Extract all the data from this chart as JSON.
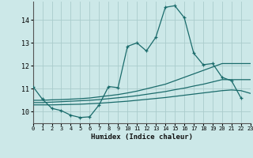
{
  "xlabel": "Humidex (Indice chaleur)",
  "xlim": [
    0,
    23
  ],
  "ylim": [
    9.5,
    14.8
  ],
  "yticks": [
    10,
    11,
    12,
    13,
    14
  ],
  "xtick_labels": [
    "0",
    "1",
    "2",
    "3",
    "4",
    "5",
    "6",
    "7",
    "8",
    "9",
    "10",
    "11",
    "12",
    "13",
    "14",
    "15",
    "16",
    "17",
    "18",
    "19",
    "20",
    "21",
    "22",
    "23"
  ],
  "bg_color": "#cce8e8",
  "grid_color": "#aacccc",
  "line_color": "#1a6b6b",
  "line1_x": [
    0,
    1,
    2,
    3,
    4,
    5,
    6,
    7,
    8,
    9,
    10,
    11,
    12,
    13,
    14,
    15,
    16,
    17,
    18,
    19,
    20,
    21,
    22
  ],
  "line1_y": [
    11.1,
    10.55,
    10.15,
    10.05,
    9.85,
    9.75,
    9.78,
    10.3,
    11.1,
    11.05,
    12.85,
    13.0,
    12.65,
    13.25,
    14.55,
    14.62,
    14.1,
    12.55,
    12.05,
    12.1,
    11.5,
    11.35,
    10.6
  ],
  "line2_x": [
    0,
    1,
    2,
    3,
    4,
    5,
    6,
    7,
    8,
    9,
    10,
    11,
    12,
    13,
    14,
    15,
    16,
    17,
    18,
    19,
    20,
    21,
    22,
    23
  ],
  "line2_y": [
    10.5,
    10.5,
    10.52,
    10.53,
    10.55,
    10.57,
    10.6,
    10.65,
    10.7,
    10.75,
    10.82,
    10.9,
    11.0,
    11.1,
    11.2,
    11.35,
    11.5,
    11.65,
    11.8,
    11.95,
    12.1,
    12.1,
    12.1,
    12.1
  ],
  "line3_x": [
    0,
    1,
    2,
    3,
    4,
    5,
    6,
    7,
    8,
    9,
    10,
    11,
    12,
    13,
    14,
    15,
    16,
    17,
    18,
    19,
    20,
    21,
    22,
    23
  ],
  "line3_y": [
    10.4,
    10.4,
    10.42,
    10.44,
    10.46,
    10.48,
    10.5,
    10.53,
    10.57,
    10.61,
    10.65,
    10.7,
    10.76,
    10.82,
    10.88,
    10.96,
    11.03,
    11.12,
    11.2,
    11.3,
    11.4,
    11.4,
    11.4,
    11.4
  ],
  "line4_x": [
    0,
    1,
    2,
    3,
    4,
    5,
    6,
    7,
    8,
    9,
    10,
    11,
    12,
    13,
    14,
    15,
    16,
    17,
    18,
    19,
    20,
    21,
    22,
    23
  ],
  "line4_y": [
    10.3,
    10.3,
    10.3,
    10.31,
    10.32,
    10.33,
    10.35,
    10.37,
    10.4,
    10.43,
    10.46,
    10.5,
    10.54,
    10.58,
    10.62,
    10.67,
    10.72,
    10.77,
    10.82,
    10.87,
    10.92,
    10.95,
    10.92,
    10.8
  ]
}
